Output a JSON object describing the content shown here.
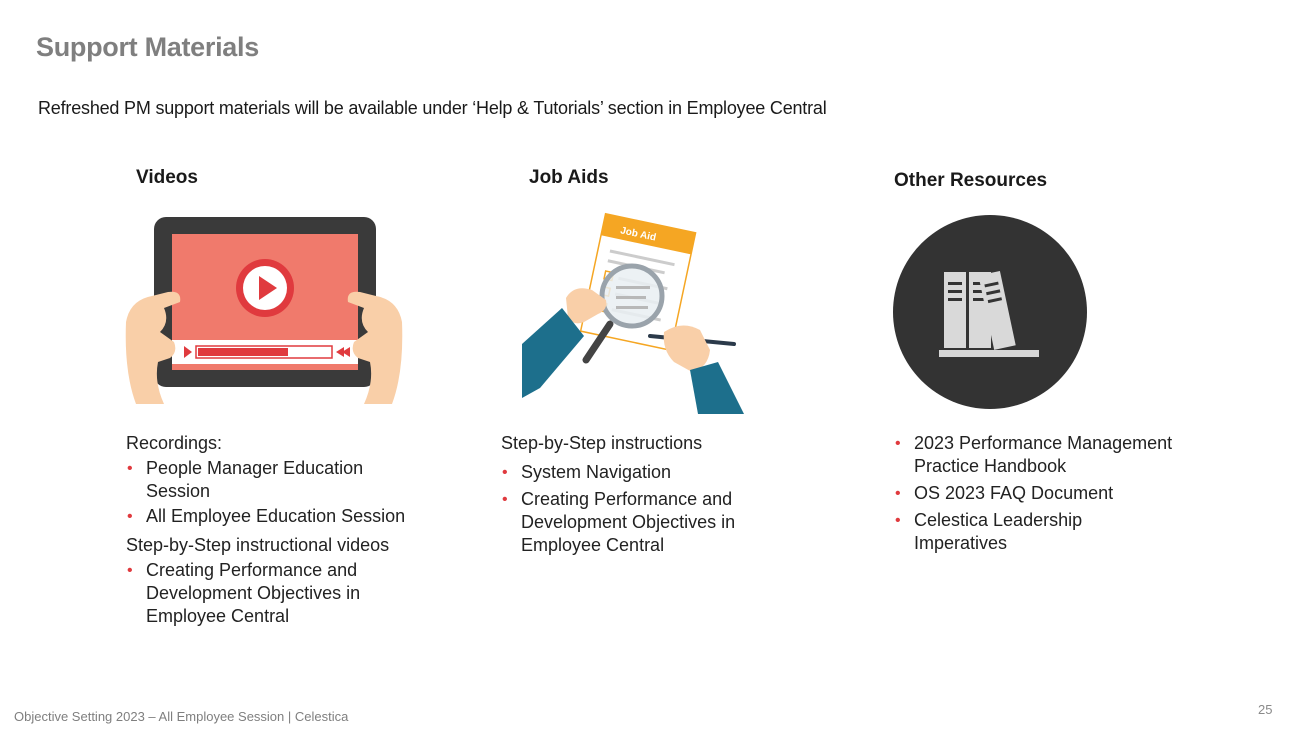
{
  "slide": {
    "title": "Support Materials",
    "subtitle": "Refreshed PM support materials will be available under ‘Help & Tutorials’ section in Employee Central"
  },
  "columns": {
    "videos": {
      "heading": "Videos",
      "icon": "video-tablet-icon",
      "recordings_label": "Recordings:",
      "recordings": [
        "People Manager Education Session",
        "All Employee Education Session"
      ],
      "instructional_label": "Step-by-Step instructional videos",
      "instructional": [
        "Creating Performance and Development Objectives in Employee Central"
      ]
    },
    "job_aids": {
      "heading": "Job Aids",
      "icon": "job-aid-document-icon",
      "badge_text": "Job Aid",
      "label": "Step-by-Step instructions",
      "items": [
        "System Navigation",
        "Creating Performance and Development Objectives in Employee Central"
      ]
    },
    "other": {
      "heading": "Other Resources",
      "icon": "books-icon",
      "items": [
        "2023 Performance Management Practice Handbook",
        "OS 2023 FAQ Document",
        "Celestica Leadership Imperatives"
      ]
    }
  },
  "footer": {
    "text": "Objective Setting 2023 – All Employee Session | Celestica",
    "page_number": "25"
  },
  "colors": {
    "title_gray": "#7f7f7f",
    "bullet_red": "#e03a3e",
    "video_screen": "#f07a6c",
    "tablet_frame": "#3a3a3a",
    "job_aid_orange": "#f5a623",
    "sleeve_teal": "#1d6f8c",
    "books_circle": "#333333"
  }
}
